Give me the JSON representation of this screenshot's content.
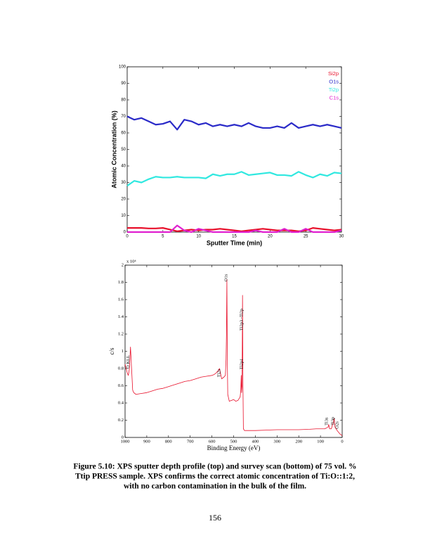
{
  "chart_data": [
    {
      "type": "line",
      "xlabel": "Sputter Time (min)",
      "ylabel": "Atomic Concentration (%)",
      "x": [
        0,
        1,
        2,
        3,
        4,
        5,
        6,
        7,
        8,
        9,
        10,
        11,
        12,
        13,
        14,
        15,
        16,
        17,
        18,
        19,
        20,
        21,
        22,
        23,
        24,
        25,
        26,
        27,
        28,
        29,
        30
      ],
      "series": [
        {
          "name": "Si2p",
          "color": "#e8102a",
          "values": [
            2.5,
            2.5,
            2.5,
            2.2,
            2.2,
            2.5,
            1.5,
            0.5,
            1,
            1.5,
            1,
            1.5,
            1.5,
            2,
            1.5,
            1,
            0.5,
            1,
            1.5,
            2,
            1.5,
            1,
            1,
            1,
            0.5,
            1,
            2.5,
            2,
            1.5,
            1,
            1.5
          ]
        },
        {
          "name": "O1s",
          "color": "#2a2ac8",
          "values": [
            70,
            68,
            69,
            67,
            65,
            65.5,
            67,
            62,
            68,
            67,
            65,
            66,
            64,
            65,
            64,
            65,
            64,
            66,
            64,
            63,
            63,
            64,
            63,
            66,
            63,
            64,
            65,
            64,
            65,
            64,
            63
          ]
        },
        {
          "name": "Ti2p",
          "color": "#30e8e0",
          "values": [
            28,
            31,
            30,
            32,
            33.5,
            33,
            33,
            33.5,
            33,
            33,
            33,
            32.5,
            35,
            34,
            35,
            35,
            36.5,
            34.5,
            35,
            35.5,
            36,
            34.5,
            34.5,
            34,
            36.5,
            34.5,
            33,
            35,
            34,
            36,
            35.5
          ]
        },
        {
          "name": "C1s",
          "color": "#e020d0",
          "values": [
            0,
            0,
            0,
            0,
            0,
            0,
            0,
            4,
            1,
            0,
            2,
            1,
            0,
            0,
            0,
            0,
            0,
            0,
            1,
            0,
            0,
            0,
            2,
            0,
            0,
            2,
            0,
            0,
            0,
            0,
            1
          ]
        }
      ],
      "xlim": [
        0,
        30
      ],
      "xticks": [
        0,
        5,
        10,
        15,
        20,
        25,
        30
      ],
      "ylim": [
        0,
        100
      ],
      "yticks": [
        0,
        10,
        20,
        30,
        40,
        50,
        60,
        70,
        80,
        90,
        100
      ],
      "grid": false,
      "legend": "upper right"
    },
    {
      "type": "line",
      "xlabel": "Binding Energy (eV)",
      "ylabel": "c/s",
      "multiplier": "x 10⁴",
      "x": [
        1000,
        995,
        990,
        985,
        980,
        975,
        970,
        965,
        960,
        950,
        925,
        900,
        875,
        850,
        825,
        800,
        775,
        750,
        725,
        700,
        675,
        650,
        625,
        600,
        590,
        580,
        570,
        565,
        560,
        555,
        545,
        538,
        535,
        533,
        531,
        529,
        527,
        520,
        510,
        500,
        490,
        480,
        470,
        467,
        465,
        463,
        461,
        459,
        457,
        455,
        450,
        425,
        400,
        350,
        300,
        250,
        200,
        150,
        120,
        100,
        80,
        65,
        62,
        58,
        50,
        40,
        37,
        33,
        28,
        23,
        20,
        10,
        0
      ],
      "values": [
        0.85,
        0.8,
        0.75,
        0.72,
        0.8,
        1.05,
        0.8,
        0.55,
        0.52,
        0.5,
        0.51,
        0.52,
        0.54,
        0.56,
        0.57,
        0.59,
        0.61,
        0.63,
        0.65,
        0.66,
        0.68,
        0.7,
        0.71,
        0.72,
        0.73,
        0.75,
        0.78,
        0.8,
        0.74,
        0.68,
        0.7,
        0.72,
        0.9,
        1.2,
        1.83,
        0.9,
        0.5,
        0.42,
        0.43,
        0.44,
        0.42,
        0.43,
        0.47,
        0.55,
        0.72,
        0.52,
        0.6,
        1.65,
        0.6,
        0.1,
        0.08,
        0.08,
        0.08,
        0.085,
        0.09,
        0.09,
        0.09,
        0.095,
        0.1,
        0.1,
        0.1,
        0.12,
        0.15,
        0.1,
        0.1,
        0.18,
        0.22,
        0.12,
        0.1,
        0.08,
        0.07,
        0.04,
        0.02
      ],
      "color": "#e8102a",
      "xlim": [
        1000,
        0
      ],
      "xticks": [
        1000,
        900,
        800,
        700,
        600,
        500,
        400,
        300,
        200,
        100,
        0
      ],
      "ylim": [
        0,
        2
      ],
      "yticks": [
        0,
        0.2,
        0.4,
        0.6,
        0.8,
        1,
        1.2,
        1.4,
        1.6,
        1.8,
        2
      ],
      "grid": false,
      "annotations": [
        {
          "label": "O KLL",
          "x": 985,
          "y": 0.8
        },
        {
          "label": "Ti2s",
          "x": 566,
          "y": 0.7
        },
        {
          "label": "O1s",
          "x": 534,
          "y": 1.81
        },
        {
          "label": "Ti2p3 -Ti2p",
          "x": 463,
          "y": 1.24
        },
        {
          "label": "Ti2p1",
          "x": 463,
          "y": 0.79
        },
        {
          "label": "Ti3s",
          "x": 71,
          "y": 0.14
        },
        {
          "label": "Ti3p",
          "x": 42,
          "y": 0.14
        },
        {
          "label": "O2s",
          "x": 23,
          "y": 0.1
        }
      ]
    }
  ],
  "caption": [
    "Figure 5.10: XPS sputter depth profile (top) and survey scan (bottom) of 75 vol. %",
    "Ttip PRESS sample.  XPS confirms the correct atomic concentration of Ti:O::1:2,",
    "with no carbon contamination in the bulk of the film."
  ],
  "page_number": "156"
}
